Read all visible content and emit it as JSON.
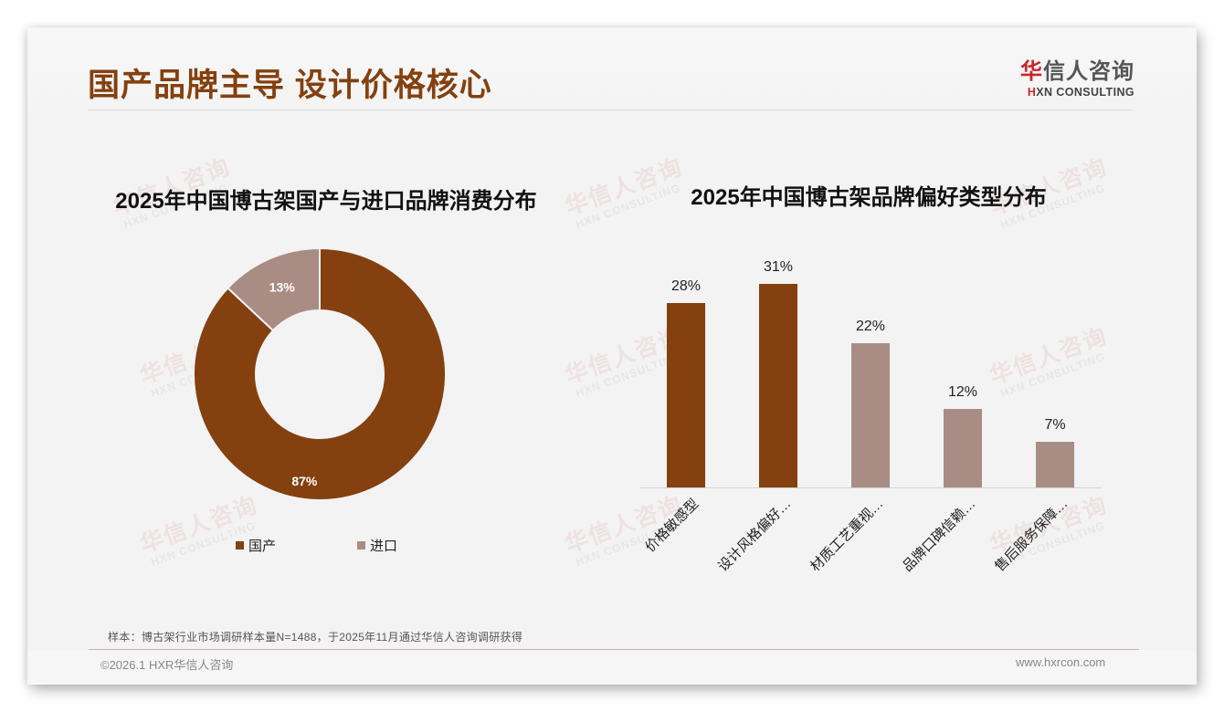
{
  "page": {
    "title": "国产品牌主导 设计价格核心",
    "logo": {
      "cn_accent": "华",
      "cn_rest": "信人咨询",
      "en_mark": "H",
      "en_rest": "XN CONSULTING"
    },
    "watermark": {
      "cn": "华信人咨询",
      "en": "HXN CONSULTING"
    }
  },
  "colors": {
    "primary": "#84400f",
    "secondary": "#a98d84",
    "title": "#84400f",
    "background": "#f3f3f3"
  },
  "chart_data": [
    {
      "type": "pie",
      "subtype": "donut",
      "title": "2025年中国博古架国产与进口品牌消费分布",
      "categories": [
        "国产",
        "进口"
      ],
      "values": [
        87,
        13
      ],
      "labels": [
        "87%",
        "13%"
      ],
      "colors": [
        "#84400f",
        "#a98d84"
      ],
      "legend": {
        "position": "bottom",
        "entries": [
          "国产",
          "进口"
        ]
      }
    },
    {
      "type": "bar",
      "title": "2025年中国博古架品牌偏好类型分布",
      "categories": [
        "价格敏感型",
        "设计风格偏好…",
        "材质工艺重视…",
        "品牌口碑信赖…",
        "售后服务保障…"
      ],
      "values": [
        28,
        31,
        22,
        12,
        7
      ],
      "labels": [
        "28%",
        "31%",
        "22%",
        "12%",
        "7%"
      ],
      "colors": [
        "#84400f",
        "#84400f",
        "#a98d84",
        "#a98d84",
        "#a98d84"
      ],
      "xlabel": "",
      "ylabel": "",
      "unit": "%",
      "grid": false,
      "ylim": [
        0,
        35
      ],
      "legend": null
    }
  ],
  "footer": {
    "note": "样本：博古架行业市场调研样本量N=1488，于2025年11月通过华信人咨询调研获得",
    "copyright": "©2026.1 HXR华信人咨询",
    "website": "www.hxrcon.com"
  }
}
